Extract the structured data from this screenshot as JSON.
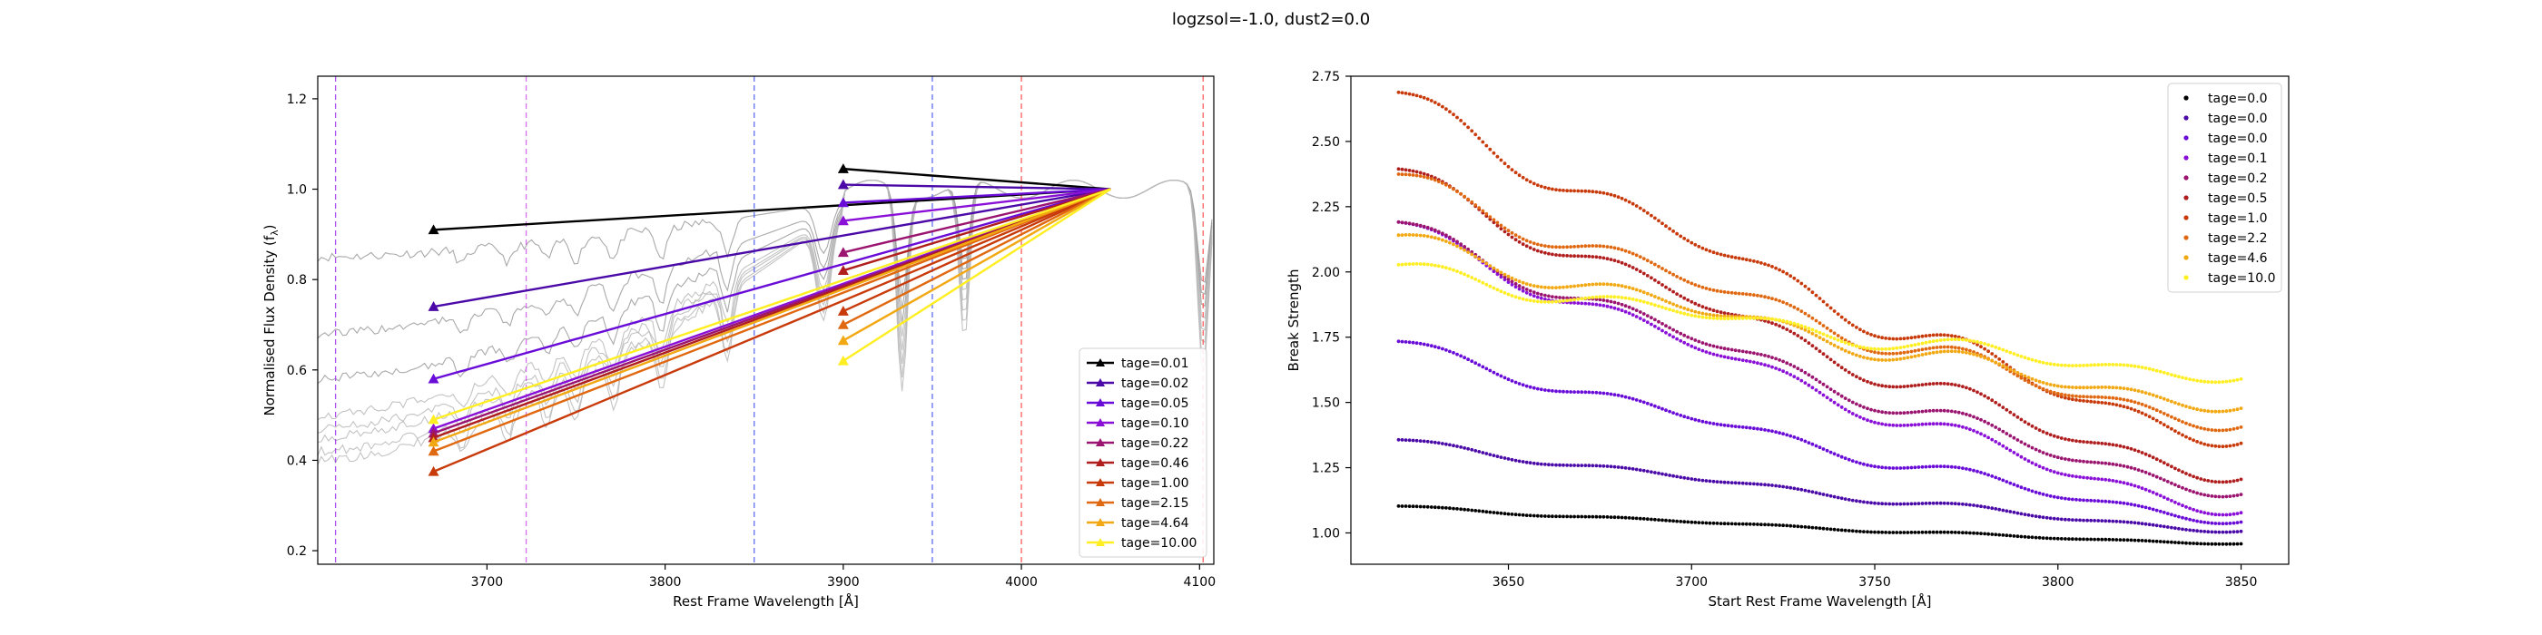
{
  "suptitle": "logzsol=-1.0, dust2=0.0",
  "chart_data": [
    {
      "type": "line",
      "xlabel": "Rest Frame Wavelength [Å]",
      "ylabel": "Normalised Flux Density (f",
      "ylabel_sub": "λ",
      "ylabel_tail": ")",
      "xlim": [
        3605,
        4108
      ],
      "ylim": [
        0.17,
        1.25
      ],
      "xticks": [
        "3700",
        "3800",
        "3900",
        "4000",
        "4100"
      ],
      "xtick_values": [
        3700,
        3800,
        3900,
        4000,
        4100
      ],
      "yticks": [
        "0.2",
        "0.4",
        "0.6",
        "0.8",
        "1.0",
        "1.2"
      ],
      "ytick_values": [
        0.2,
        0.4,
        0.6,
        0.8,
        1.0,
        1.2
      ],
      "legend_position": "lower-right",
      "vlines": [
        {
          "x": 3615,
          "color": "#9933ee"
        },
        {
          "x": 3722,
          "color": "#cc55ee"
        },
        {
          "x": 3850,
          "color": "#4455ee"
        },
        {
          "x": 3950,
          "color": "#4455ee"
        },
        {
          "x": 4000,
          "color": "#ff4444"
        },
        {
          "x": 4102,
          "color": "#ff4444"
        }
      ],
      "anchor": {
        "x": 4050,
        "y": 1.0
      },
      "series": [
        {
          "name": "tage=0.01",
          "color": "#000000",
          "blue_x": 3670,
          "blue_y": 0.91,
          "red_x": 3900,
          "red_y": 1.045
        },
        {
          "name": "tage=0.02",
          "color": "#4b0aa8",
          "blue_x": 3670,
          "blue_y": 0.74,
          "red_x": 3900,
          "red_y": 1.01
        },
        {
          "name": "tage=0.05",
          "color": "#6a0cd8",
          "blue_x": 3670,
          "blue_y": 0.58,
          "red_x": 3900,
          "red_y": 0.97
        },
        {
          "name": "tage=0.10",
          "color": "#8a10d8",
          "blue_x": 3670,
          "blue_y": 0.47,
          "red_x": 3900,
          "red_y": 0.93
        },
        {
          "name": "tage=0.22",
          "color": "#9a1470",
          "blue_x": 3670,
          "blue_y": 0.46,
          "red_x": 3900,
          "red_y": 0.86
        },
        {
          "name": "tage=0.46",
          "color": "#b01e1e",
          "blue_x": 3670,
          "blue_y": 0.45,
          "red_x": 3900,
          "red_y": 0.82
        },
        {
          "name": "tage=1.00",
          "color": "#c83a0a",
          "blue_x": 3670,
          "blue_y": 0.375,
          "red_x": 3900,
          "red_y": 0.73
        },
        {
          "name": "tage=2.15",
          "color": "#e06810",
          "blue_x": 3670,
          "blue_y": 0.42,
          "red_x": 3900,
          "red_y": 0.7
        },
        {
          "name": "tage=4.64",
          "color": "#f2a812",
          "blue_x": 3670,
          "blue_y": 0.44,
          "red_x": 3900,
          "red_y": 0.665
        },
        {
          "name": "tage=10.00",
          "color": "#ffee22",
          "blue_x": 3670,
          "blue_y": 0.49,
          "red_x": 3900,
          "red_y": 0.62
        }
      ],
      "spectra_base": [
        0.85,
        0.68,
        0.58,
        0.5,
        0.47,
        0.45,
        0.42,
        0.4
      ]
    },
    {
      "type": "scatter",
      "xlabel": "Start Rest Frame Wavelength [Å]",
      "ylabel": "Break Strength",
      "xlim": [
        3607,
        3863
      ],
      "ylim": [
        0.88,
        2.75
      ],
      "xticks": [
        "3650",
        "3700",
        "3750",
        "3800",
        "3850"
      ],
      "xtick_values": [
        3650,
        3700,
        3750,
        3800,
        3850
      ],
      "yticks": [
        "1.00",
        "1.25",
        "1.50",
        "1.75",
        "2.00",
        "2.25",
        "2.50",
        "2.75"
      ],
      "ytick_values": [
        1.0,
        1.25,
        1.5,
        1.75,
        2.0,
        2.25,
        2.5,
        2.75
      ],
      "legend_position": "top-right",
      "x_range": [
        3620,
        3850
      ],
      "series": [
        {
          "name": "tage=0.0",
          "color": "#000000",
          "y_start": 1.1,
          "y_end": 0.96,
          "wiggle": 0.004
        },
        {
          "name": "tage=0.0",
          "color": "#4b0aa8",
          "y_start": 1.35,
          "y_end": 1.01,
          "wiggle": 0.01
        },
        {
          "name": "tage=0.0",
          "color": "#6a0cd8",
          "y_start": 1.72,
          "y_end": 1.05,
          "wiggle": 0.02
        },
        {
          "name": "tage=0.1",
          "color": "#8a10d8",
          "y_start": 2.17,
          "y_end": 1.09,
          "wiggle": 0.03
        },
        {
          "name": "tage=0.2",
          "color": "#9a1470",
          "y_start": 2.17,
          "y_end": 1.16,
          "wiggle": 0.03
        },
        {
          "name": "tage=0.5",
          "color": "#b01e1e",
          "y_start": 2.37,
          "y_end": 1.22,
          "wiggle": 0.035
        },
        {
          "name": "tage=1.0",
          "color": "#c83a0a",
          "y_start": 2.66,
          "y_end": 1.36,
          "wiggle": 0.04
        },
        {
          "name": "tage=2.2",
          "color": "#e06810",
          "y_start": 2.35,
          "y_end": 1.42,
          "wiggle": 0.035
        },
        {
          "name": "tage=4.6",
          "color": "#f2a812",
          "y_start": 2.12,
          "y_end": 1.49,
          "wiggle": 0.03
        },
        {
          "name": "tage=10.0",
          "color": "#ffee22",
          "y_start": 2.01,
          "y_end": 1.6,
          "wiggle": 0.025
        }
      ]
    }
  ]
}
